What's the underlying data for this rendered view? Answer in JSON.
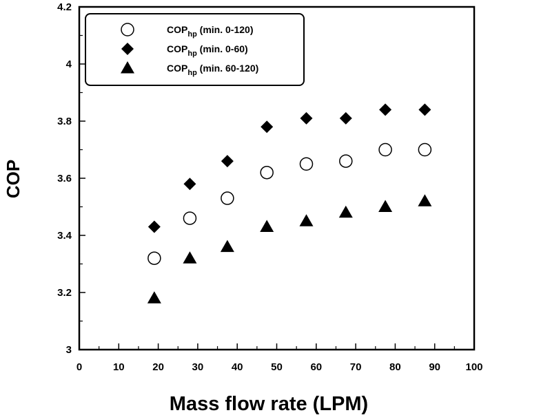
{
  "chart_data": {
    "type": "scatter",
    "title": "",
    "xlabel": "Mass flow rate (LPM)",
    "ylabel": "COP",
    "xlim": [
      0,
      100
    ],
    "ylim": [
      3.0,
      4.2
    ],
    "xticks": [
      "0",
      "10",
      "20",
      "30",
      "40",
      "50",
      "60",
      "70",
      "80",
      "90",
      "100"
    ],
    "yticks": [
      "3",
      "3.2",
      "3.4",
      "3.6",
      "3.8",
      "4",
      "4.2"
    ],
    "legend_position": "top-left",
    "grid": false,
    "series": [
      {
        "name_main": "COP",
        "name_sub": "hp",
        "name_rest": " (min. 0-120)",
        "marker": "open-circle",
        "x": [
          19,
          28,
          37.5,
          47.5,
          57.5,
          67.5,
          77.5,
          87.5
        ],
        "y": [
          3.32,
          3.46,
          3.53,
          3.62,
          3.65,
          3.66,
          3.7,
          3.7
        ]
      },
      {
        "name_main": "COP",
        "name_sub": "hp",
        "name_rest": " (min. 0-60)",
        "marker": "filled-diamond",
        "x": [
          19,
          28,
          37.5,
          47.5,
          57.5,
          67.5,
          77.5,
          87.5
        ],
        "y": [
          3.43,
          3.58,
          3.66,
          3.78,
          3.81,
          3.81,
          3.84,
          3.84
        ]
      },
      {
        "name_main": "COP",
        "name_sub": "hp",
        "name_rest": " (min. 60-120)",
        "marker": "filled-triangle",
        "x": [
          19,
          28,
          37.5,
          47.5,
          57.5,
          67.5,
          77.5,
          87.5
        ],
        "y": [
          3.18,
          3.32,
          3.36,
          3.43,
          3.45,
          3.48,
          3.5,
          3.52
        ]
      }
    ]
  }
}
